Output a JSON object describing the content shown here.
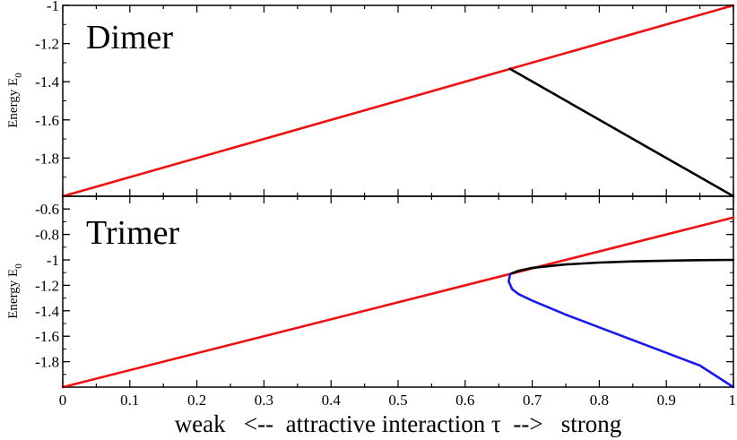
{
  "chart_data": [
    {
      "type": "line",
      "title": "Dimer",
      "ylabel": "Energy E",
      "ylabel_subscript": "0",
      "xlim": [
        0,
        1
      ],
      "ylim": [
        -2,
        -1
      ],
      "yticks": [
        "-1",
        "-1.2",
        "-1.4",
        "-1.6",
        "-1.8"
      ],
      "grid": false,
      "series": [
        {
          "color": "#ee1111",
          "x": [
            0,
            1
          ],
          "y": [
            -2,
            -1
          ]
        },
        {
          "color": "#000000",
          "x": [
            0.667,
            1
          ],
          "y": [
            -1.333,
            -2
          ]
        }
      ]
    },
    {
      "type": "line",
      "title": "Trimer",
      "ylabel": "Energy  E",
      "ylabel_subscript": "0",
      "xlim": [
        0,
        1
      ],
      "ylim": [
        -2,
        -0.5
      ],
      "yticks": [
        "-0.6",
        "-0.8",
        "-1",
        "-1.2",
        "-1.4",
        "-1.6",
        "-1.8"
      ],
      "grid": false,
      "series": [
        {
          "color": "#ee1111",
          "x": [
            0,
            1
          ],
          "y": [
            -2,
            -0.667
          ]
        },
        {
          "color": "#000000",
          "x": [
            0.667,
            0.68,
            0.7,
            0.75,
            0.8,
            0.85,
            0.9,
            0.95,
            1.0
          ],
          "y": [
            -1.111,
            -1.085,
            -1.063,
            -1.036,
            -1.021,
            -1.012,
            -1.006,
            -1.002,
            -1.0
          ]
        },
        {
          "color": "#1a1aee",
          "x": [
            0.667,
            0.665,
            0.67,
            0.68,
            0.7,
            0.75,
            0.8,
            0.85,
            0.9,
            0.95,
            1.0
          ],
          "y": [
            -1.111,
            -1.17,
            -1.23,
            -1.27,
            -1.32,
            -1.43,
            -1.53,
            -1.63,
            -1.73,
            -1.83,
            -2.0
          ]
        }
      ]
    }
  ],
  "x_axis": {
    "ticks": [
      "0",
      "0.1",
      "0.2",
      "0.3",
      "0.4",
      "0.5",
      "0.6",
      "0.7",
      "0.8",
      "0.9",
      "1"
    ],
    "label": "weak   <--  attractive interaction τ  -->   strong"
  }
}
